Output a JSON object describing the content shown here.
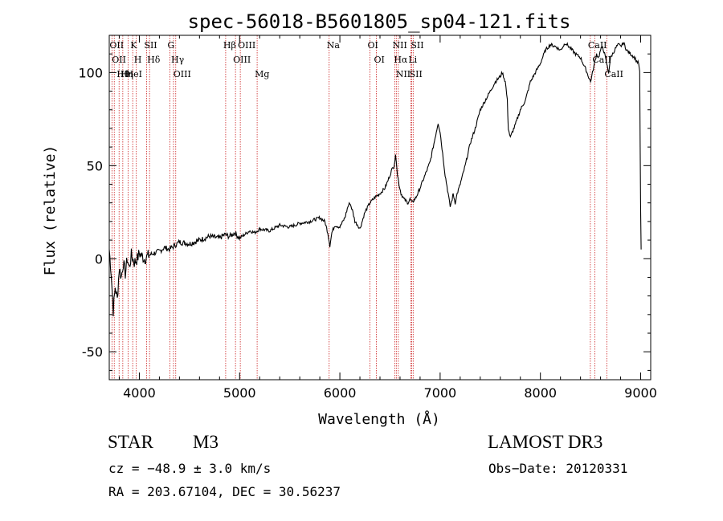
{
  "chart_data": {
    "type": "line",
    "title": "spec-56018-B5601805_sp04-121.fits",
    "xlabel": "Wavelength (Å)",
    "ylabel": "Flux (relative)",
    "xlim": [
      3700,
      9100
    ],
    "ylim": [
      -65,
      120
    ],
    "xticks": [
      4000,
      5000,
      6000,
      7000,
      8000,
      9000
    ],
    "yticks": [
      -50,
      0,
      50,
      100
    ],
    "grid": false,
    "line_color": "#000000",
    "marker_color": "#cc2222",
    "series": [
      {
        "name": "spectrum",
        "x": [
          3700,
          3720,
          3740,
          3760,
          3780,
          3800,
          3820,
          3840,
          3860,
          3880,
          3900,
          3920,
          3950,
          3980,
          4000,
          4050,
          4100,
          4150,
          4200,
          4250,
          4300,
          4350,
          4400,
          4500,
          4600,
          4700,
          4800,
          4850,
          4900,
          4950,
          5000,
          5050,
          5100,
          5150,
          5200,
          5300,
          5400,
          5500,
          5600,
          5700,
          5800,
          5850,
          5880,
          5900,
          5920,
          5950,
          6000,
          6050,
          6080,
          6100,
          6130,
          6150,
          6180,
          6200,
          6250,
          6300,
          6350,
          6400,
          6450,
          6480,
          6500,
          6520,
          6540,
          6555,
          6563,
          6575,
          6590,
          6610,
          6640,
          6680,
          6700,
          6720,
          6760,
          6800,
          6850,
          6900,
          6950,
          6980,
          7000,
          7050,
          7080,
          7100,
          7120,
          7130,
          7150,
          7170,
          7200,
          7250,
          7300,
          7350,
          7400,
          7450,
          7500,
          7550,
          7600,
          7620,
          7650,
          7670,
          7680,
          7700,
          7720,
          7750,
          7800,
          7850,
          7900,
          7950,
          8000,
          8050,
          8100,
          8150,
          8200,
          8250,
          8300,
          8350,
          8400,
          8450,
          8500,
          8520,
          8540,
          8560,
          8580,
          8600,
          8620,
          8640,
          8660,
          8680,
          8700,
          8720,
          8740,
          8760,
          8780,
          8800,
          8830,
          8860,
          8900,
          8940,
          8960,
          8980,
          8990,
          8995,
          9000,
          9005
        ],
        "y": [
          5,
          -8,
          -28,
          -15,
          -22,
          -5,
          -10,
          -2,
          -8,
          0,
          -5,
          2,
          -2,
          0,
          3,
          0,
          2,
          3,
          4,
          6,
          5,
          7,
          9,
          8,
          10,
          12,
          11,
          13,
          12,
          14,
          11,
          13,
          15,
          14,
          16,
          15,
          18,
          17,
          19,
          20,
          22,
          20,
          14,
          7,
          14,
          18,
          17,
          22,
          28,
          30,
          25,
          20,
          18,
          16,
          25,
          30,
          33,
          35,
          38,
          42,
          45,
          48,
          50,
          55,
          53,
          45,
          40,
          35,
          32,
          30,
          32,
          30,
          33,
          38,
          45,
          52,
          65,
          73,
          68,
          45,
          35,
          28,
          32,
          35,
          30,
          35,
          40,
          50,
          62,
          70,
          80,
          85,
          90,
          95,
          98,
          100,
          95,
          85,
          70,
          65,
          68,
          72,
          80,
          85,
          95,
          100,
          105,
          112,
          115,
          114,
          112,
          116,
          113,
          110,
          108,
          102,
          95,
          100,
          105,
          110,
          108,
          112,
          114,
          110,
          105,
          100,
          108,
          110,
          112,
          114,
          115,
          114,
          116,
          112,
          110,
          108,
          106,
          105,
          100,
          60,
          25,
          5
        ]
      }
    ],
    "lines": [
      {
        "wl": 3727,
        "label": "OII"
      },
      {
        "wl": 3750,
        "label": "OII"
      },
      {
        "wl": 3798,
        "label": "Hθ"
      },
      {
        "wl": 3835,
        "label": "Hη"
      },
      {
        "wl": 3889,
        "label": "HeI"
      },
      {
        "wl": 3934,
        "label": "K"
      },
      {
        "wl": 3970,
        "label": "H"
      },
      {
        "wl": 4072,
        "label": "SII"
      },
      {
        "wl": 4102,
        "label": "Hδ"
      },
      {
        "wl": 4304,
        "label": "G"
      },
      {
        "wl": 4341,
        "label": "Hγ"
      },
      {
        "wl": 4363,
        "label": "OIII"
      },
      {
        "wl": 4861,
        "label": "Hβ"
      },
      {
        "wl": 4959,
        "label": "OIII"
      },
      {
        "wl": 5007,
        "label": "OIII"
      },
      {
        "wl": 5175,
        "label": "Mg"
      },
      {
        "wl": 5893,
        "label": "Na"
      },
      {
        "wl": 6300,
        "label": "OI"
      },
      {
        "wl": 6364,
        "label": "OI"
      },
      {
        "wl": 6548,
        "label": "NII"
      },
      {
        "wl": 6563,
        "label": "Hα"
      },
      {
        "wl": 6583,
        "label": "NII"
      },
      {
        "wl": 6707,
        "label": "Li"
      },
      {
        "wl": 6717,
        "label": "SII"
      },
      {
        "wl": 6731,
        "label": "SII"
      },
      {
        "wl": 8498,
        "label": "CaII"
      },
      {
        "wl": 8542,
        "label": "CaII"
      },
      {
        "wl": 8662,
        "label": "CaII"
      }
    ]
  },
  "info": {
    "class": "STAR",
    "subclass": "M3",
    "survey": "LAMOST DR3",
    "cz": "cz = −48.9 ± 3.0 km/s",
    "obs_date": "Obs−Date: 20120331",
    "radec": "RA = 203.67104, DEC =  30.56237"
  }
}
